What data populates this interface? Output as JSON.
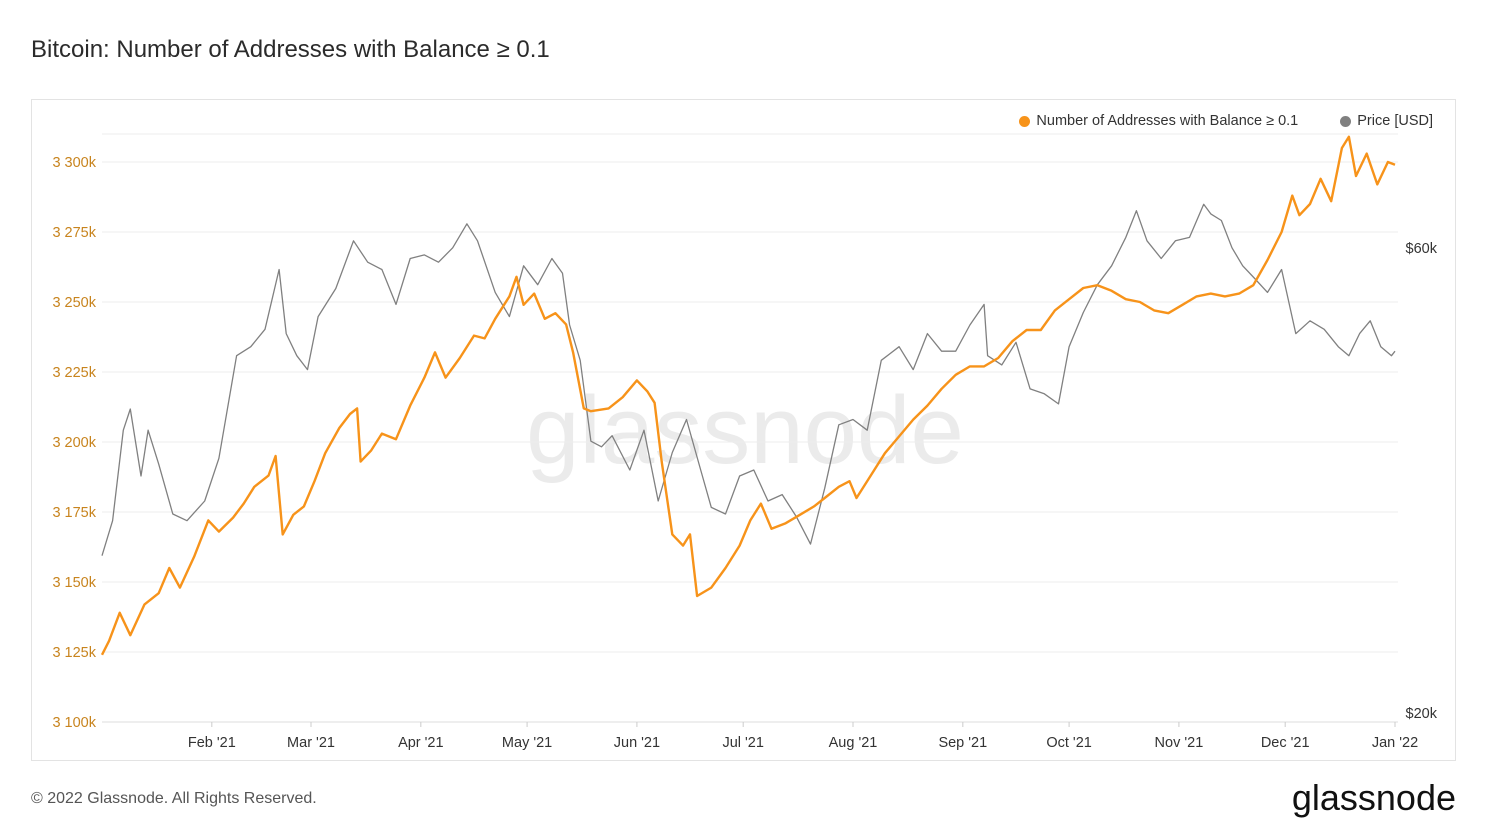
{
  "header": {
    "title": "Bitcoin: Number of Addresses with Balance ≥ 0.1"
  },
  "footer": {
    "copyright": "© 2022 Glassnode. All Rights Reserved.",
    "brand": "glassnode"
  },
  "watermark": "glassnode",
  "colors": {
    "addresses": "#f7931a",
    "price": "#808080",
    "left_axis_text": "#c8841e",
    "grid": "#ececec"
  },
  "legend": [
    {
      "label": "Number of Addresses with Balance ≥ 0.1",
      "color": "#f7931a"
    },
    {
      "label": "Price [USD]",
      "color": "#808080"
    }
  ],
  "chart_data": {
    "type": "line",
    "title": "Bitcoin: Number of Addresses with Balance ≥ 0.1",
    "x_axis": {
      "min": "2021-01-01",
      "max": "2022-01-01",
      "tick_labels": [
        "Feb '21",
        "Mar '21",
        "Apr '21",
        "May '21",
        "Jun '21",
        "Jul '21",
        "Aug '21",
        "Sep '21",
        "Oct '21",
        "Nov '21",
        "Dec '21",
        "Jan '22"
      ]
    },
    "y_left": {
      "label": "Number of Addresses with Balance ≥ 0.1",
      "min": 3100000,
      "max": 3310000,
      "ticks": [
        3100000,
        3125000,
        3150000,
        3175000,
        3200000,
        3225000,
        3250000,
        3275000,
        3300000
      ],
      "tick_labels": [
        "3 100k",
        "3 125k",
        "3 150k",
        "3 175k",
        "3 200k",
        "3 225k",
        "3 250k",
        "3 275k",
        "3 300k"
      ]
    },
    "y_right": {
      "label": "Price [USD]",
      "scale": "log",
      "min": 20000,
      "max": 80000,
      "ticks": [
        20000,
        60000
      ],
      "tick_labels": [
        "$20k",
        "$60k"
      ]
    },
    "grid": true,
    "legend_position": "top-right",
    "series": [
      {
        "name": "Number of Addresses with Balance ≥ 0.1",
        "axis": "left",
        "color": "#f7931a",
        "points": [
          [
            "2021-01-01",
            3124000
          ],
          [
            "2021-01-03",
            3129000
          ],
          [
            "2021-01-06",
            3139000
          ],
          [
            "2021-01-09",
            3131000
          ],
          [
            "2021-01-13",
            3142000
          ],
          [
            "2021-01-17",
            3146000
          ],
          [
            "2021-01-20",
            3155000
          ],
          [
            "2021-01-23",
            3148000
          ],
          [
            "2021-01-27",
            3159000
          ],
          [
            "2021-01-31",
            3172000
          ],
          [
            "2021-02-03",
            3168000
          ],
          [
            "2021-02-07",
            3173000
          ],
          [
            "2021-02-10",
            3178000
          ],
          [
            "2021-02-13",
            3184000
          ],
          [
            "2021-02-17",
            3188000
          ],
          [
            "2021-02-19",
            3195000
          ],
          [
            "2021-02-21",
            3167000
          ],
          [
            "2021-02-24",
            3174000
          ],
          [
            "2021-02-27",
            3177000
          ],
          [
            "2021-03-02",
            3186000
          ],
          [
            "2021-03-05",
            3196000
          ],
          [
            "2021-03-09",
            3205000
          ],
          [
            "2021-03-12",
            3210000
          ],
          [
            "2021-03-14",
            3212000
          ],
          [
            "2021-03-15",
            3193000
          ],
          [
            "2021-03-18",
            3197000
          ],
          [
            "2021-03-21",
            3203000
          ],
          [
            "2021-03-25",
            3201000
          ],
          [
            "2021-03-29",
            3213000
          ],
          [
            "2021-04-02",
            3223000
          ],
          [
            "2021-04-05",
            3232000
          ],
          [
            "2021-04-08",
            3223000
          ],
          [
            "2021-04-12",
            3230000
          ],
          [
            "2021-04-16",
            3238000
          ],
          [
            "2021-04-19",
            3237000
          ],
          [
            "2021-04-22",
            3244000
          ],
          [
            "2021-04-26",
            3252000
          ],
          [
            "2021-04-28",
            3259000
          ],
          [
            "2021-04-30",
            3249000
          ],
          [
            "2021-05-03",
            3253000
          ],
          [
            "2021-05-06",
            3244000
          ],
          [
            "2021-05-09",
            3246000
          ],
          [
            "2021-05-12",
            3242000
          ],
          [
            "2021-05-14",
            3232000
          ],
          [
            "2021-05-17",
            3212000
          ],
          [
            "2021-05-19",
            3211000
          ],
          [
            "2021-05-24",
            3212000
          ],
          [
            "2021-05-28",
            3216000
          ],
          [
            "2021-06-01",
            3222000
          ],
          [
            "2021-06-04",
            3218000
          ],
          [
            "2021-06-06",
            3214000
          ],
          [
            "2021-06-08",
            3193000
          ],
          [
            "2021-06-11",
            3167000
          ],
          [
            "2021-06-14",
            3163000
          ],
          [
            "2021-06-16",
            3167000
          ],
          [
            "2021-06-18",
            3145000
          ],
          [
            "2021-06-22",
            3148000
          ],
          [
            "2021-06-26",
            3155000
          ],
          [
            "2021-06-30",
            3163000
          ],
          [
            "2021-07-03",
            3172000
          ],
          [
            "2021-07-06",
            3178000
          ],
          [
            "2021-07-09",
            3169000
          ],
          [
            "2021-07-13",
            3171000
          ],
          [
            "2021-07-17",
            3174000
          ],
          [
            "2021-07-21",
            3177000
          ],
          [
            "2021-07-24",
            3180000
          ],
          [
            "2021-07-28",
            3184000
          ],
          [
            "2021-07-31",
            3186000
          ],
          [
            "2021-08-02",
            3180000
          ],
          [
            "2021-08-06",
            3188000
          ],
          [
            "2021-08-10",
            3196000
          ],
          [
            "2021-08-14",
            3202000
          ],
          [
            "2021-08-18",
            3208000
          ],
          [
            "2021-08-22",
            3213000
          ],
          [
            "2021-08-26",
            3219000
          ],
          [
            "2021-08-30",
            3224000
          ],
          [
            "2021-09-03",
            3227000
          ],
          [
            "2021-09-07",
            3227000
          ],
          [
            "2021-09-11",
            3230000
          ],
          [
            "2021-09-15",
            3236000
          ],
          [
            "2021-09-19",
            3240000
          ],
          [
            "2021-09-23",
            3240000
          ],
          [
            "2021-09-27",
            3247000
          ],
          [
            "2021-10-01",
            3251000
          ],
          [
            "2021-10-05",
            3255000
          ],
          [
            "2021-10-09",
            3256000
          ],
          [
            "2021-10-13",
            3254000
          ],
          [
            "2021-10-17",
            3251000
          ],
          [
            "2021-10-21",
            3250000
          ],
          [
            "2021-10-25",
            3247000
          ],
          [
            "2021-10-29",
            3246000
          ],
          [
            "2021-11-02",
            3249000
          ],
          [
            "2021-11-06",
            3252000
          ],
          [
            "2021-11-10",
            3253000
          ],
          [
            "2021-11-14",
            3252000
          ],
          [
            "2021-11-18",
            3253000
          ],
          [
            "2021-11-22",
            3256000
          ],
          [
            "2021-11-26",
            3265000
          ],
          [
            "2021-11-30",
            3275000
          ],
          [
            "2021-12-03",
            3288000
          ],
          [
            "2021-12-05",
            3281000
          ],
          [
            "2021-12-08",
            3285000
          ],
          [
            "2021-12-11",
            3294000
          ],
          [
            "2021-12-14",
            3286000
          ],
          [
            "2021-12-17",
            3305000
          ],
          [
            "2021-12-19",
            3309000
          ],
          [
            "2021-12-21",
            3295000
          ],
          [
            "2021-12-24",
            3303000
          ],
          [
            "2021-12-27",
            3292000
          ],
          [
            "2021-12-30",
            3300000
          ],
          [
            "2022-01-01",
            3299000
          ]
        ]
      },
      {
        "name": "Price [USD]",
        "axis": "right",
        "color": "#808080",
        "points": [
          [
            "2021-01-01",
            29000
          ],
          [
            "2021-01-04",
            31500
          ],
          [
            "2021-01-07",
            39000
          ],
          [
            "2021-01-09",
            41000
          ],
          [
            "2021-01-12",
            35000
          ],
          [
            "2021-01-14",
            39000
          ],
          [
            "2021-01-17",
            36000
          ],
          [
            "2021-01-21",
            32000
          ],
          [
            "2021-01-25",
            31500
          ],
          [
            "2021-01-30",
            33000
          ],
          [
            "2021-02-03",
            36500
          ],
          [
            "2021-02-08",
            46500
          ],
          [
            "2021-02-12",
            47500
          ],
          [
            "2021-02-16",
            49500
          ],
          [
            "2021-02-20",
            57000
          ],
          [
            "2021-02-22",
            49000
          ],
          [
            "2021-02-25",
            46500
          ],
          [
            "2021-02-28",
            45000
          ],
          [
            "2021-03-03",
            51000
          ],
          [
            "2021-03-08",
            54500
          ],
          [
            "2021-03-13",
            61000
          ],
          [
            "2021-03-17",
            58000
          ],
          [
            "2021-03-21",
            57000
          ],
          [
            "2021-03-25",
            52500
          ],
          [
            "2021-03-29",
            58500
          ],
          [
            "2021-04-02",
            59000
          ],
          [
            "2021-04-06",
            58000
          ],
          [
            "2021-04-10",
            60000
          ],
          [
            "2021-04-14",
            63500
          ],
          [
            "2021-04-17",
            61000
          ],
          [
            "2021-04-22",
            54000
          ],
          [
            "2021-04-26",
            51000
          ],
          [
            "2021-04-30",
            57500
          ],
          [
            "2021-05-04",
            55000
          ],
          [
            "2021-05-08",
            58500
          ],
          [
            "2021-05-11",
            56500
          ],
          [
            "2021-05-13",
            50000
          ],
          [
            "2021-05-16",
            46000
          ],
          [
            "2021-05-19",
            38000
          ],
          [
            "2021-05-22",
            37500
          ],
          [
            "2021-05-25",
            38500
          ],
          [
            "2021-05-30",
            35500
          ],
          [
            "2021-06-03",
            39000
          ],
          [
            "2021-06-07",
            33000
          ],
          [
            "2021-06-11",
            37000
          ],
          [
            "2021-06-15",
            40000
          ],
          [
            "2021-06-19",
            35500
          ],
          [
            "2021-06-22",
            32500
          ],
          [
            "2021-06-26",
            32000
          ],
          [
            "2021-06-30",
            35000
          ],
          [
            "2021-07-04",
            35500
          ],
          [
            "2021-07-08",
            33000
          ],
          [
            "2021-07-12",
            33500
          ],
          [
            "2021-07-16",
            31800
          ],
          [
            "2021-07-20",
            29800
          ],
          [
            "2021-07-24",
            34000
          ],
          [
            "2021-07-28",
            39500
          ],
          [
            "2021-08-01",
            40000
          ],
          [
            "2021-08-05",
            39000
          ],
          [
            "2021-08-09",
            46000
          ],
          [
            "2021-08-14",
            47500
          ],
          [
            "2021-08-18",
            45000
          ],
          [
            "2021-08-22",
            49000
          ],
          [
            "2021-08-26",
            47000
          ],
          [
            "2021-08-30",
            47000
          ],
          [
            "2021-09-03",
            50000
          ],
          [
            "2021-09-07",
            52500
          ],
          [
            "2021-09-08",
            46500
          ],
          [
            "2021-09-12",
            45500
          ],
          [
            "2021-09-16",
            48000
          ],
          [
            "2021-09-20",
            43000
          ],
          [
            "2021-09-24",
            42500
          ],
          [
            "2021-09-28",
            41500
          ],
          [
            "2021-10-01",
            47500
          ],
          [
            "2021-10-05",
            51500
          ],
          [
            "2021-10-09",
            55000
          ],
          [
            "2021-10-13",
            57500
          ],
          [
            "2021-10-17",
            61500
          ],
          [
            "2021-10-20",
            65500
          ],
          [
            "2021-10-23",
            61000
          ],
          [
            "2021-10-27",
            58500
          ],
          [
            "2021-10-31",
            61000
          ],
          [
            "2021-11-04",
            61500
          ],
          [
            "2021-11-08",
            66500
          ],
          [
            "2021-11-10",
            65000
          ],
          [
            "2021-11-13",
            64000
          ],
          [
            "2021-11-16",
            60000
          ],
          [
            "2021-11-19",
            57500
          ],
          [
            "2021-11-22",
            56000
          ],
          [
            "2021-11-26",
            54000
          ],
          [
            "2021-11-30",
            57000
          ],
          [
            "2021-12-04",
            49000
          ],
          [
            "2021-12-08",
            50500
          ],
          [
            "2021-12-12",
            49500
          ],
          [
            "2021-12-16",
            47500
          ],
          [
            "2021-12-19",
            46500
          ],
          [
            "2021-12-22",
            49000
          ],
          [
            "2021-12-25",
            50500
          ],
          [
            "2021-12-28",
            47500
          ],
          [
            "2021-12-31",
            46500
          ],
          [
            "2022-01-01",
            47000
          ]
        ]
      }
    ]
  }
}
